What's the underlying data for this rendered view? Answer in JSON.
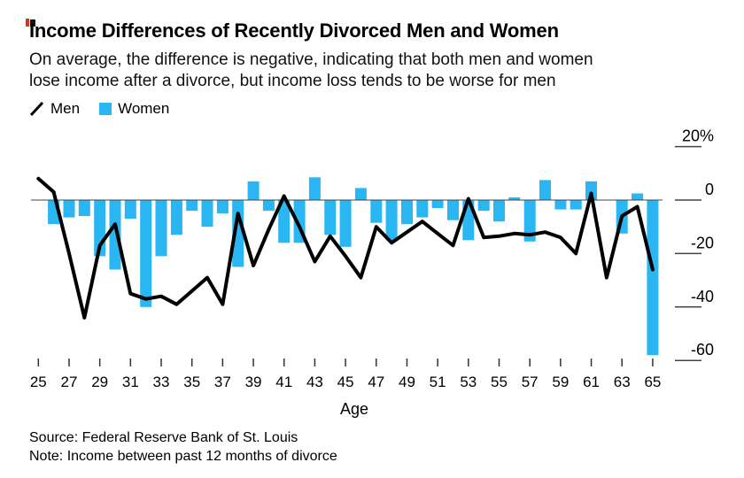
{
  "header": {
    "title": "Income Differences of Recently Divorced Men and Women",
    "subtitle_line1": "On average, the difference is negative, indicating that both men and women",
    "subtitle_line2": "lose income after a divorce, but income loss tends to be worse for men"
  },
  "logo": {
    "red": "#e0301e",
    "black": "#111111"
  },
  "legend": {
    "men_label": "Men",
    "women_label": "Women"
  },
  "chart_data": {
    "type": "bar+line",
    "title": "Income Differences of Recently Divorced Men and Women",
    "xlabel": "Age",
    "ylabel": "",
    "x": [
      25,
      26,
      27,
      28,
      29,
      30,
      31,
      32,
      33,
      34,
      35,
      36,
      37,
      38,
      39,
      40,
      41,
      42,
      43,
      44,
      45,
      46,
      47,
      48,
      49,
      50,
      51,
      52,
      53,
      54,
      55,
      56,
      57,
      58,
      59,
      60,
      61,
      62,
      63,
      64,
      65
    ],
    "series": [
      {
        "name": "Men",
        "type": "line",
        "color": "#000000",
        "values": [
          8,
          3,
          -20,
          -44,
          -17,
          -9,
          -35,
          -37,
          -36,
          -39,
          -34,
          -29,
          -39,
          -5,
          -24.5,
          -11,
          1.5,
          -10,
          -23,
          -13.5,
          -21,
          -29,
          -10,
          -16,
          -12,
          -8,
          -12.5,
          -17,
          0.5,
          -14,
          -13.5,
          -12.5,
          -13,
          -12,
          -14,
          -20,
          2.5,
          -29,
          -6,
          -2.5,
          -26
        ]
      },
      {
        "name": "Women",
        "type": "bar",
        "color": "#29b6f2",
        "values": [
          0,
          -9,
          -6.5,
          -6,
          -21,
          -26,
          -7,
          -40,
          -21,
          -13,
          -4,
          -10,
          -5,
          -25,
          7,
          -4,
          -16,
          -16,
          8.5,
          -13,
          -17.5,
          4.5,
          -8.5,
          -15,
          -9,
          -6.5,
          -3,
          -7.5,
          -15,
          -4,
          -8,
          1,
          -15.5,
          7.5,
          -3.5,
          -3.5,
          7,
          0,
          -12.5,
          2.5,
          -58
        ]
      }
    ],
    "x_tick_labels": [
      "25",
      "27",
      "29",
      "31",
      "33",
      "35",
      "37",
      "39",
      "41",
      "43",
      "45",
      "47",
      "49",
      "51",
      "53",
      "55",
      "57",
      "59",
      "61",
      "63",
      "65"
    ],
    "y_ticks": [
      {
        "label": "20%",
        "value": 20
      },
      {
        "label": "0",
        "value": 0
      },
      {
        "label": "-20",
        "value": -20
      },
      {
        "label": "-40",
        "value": -40
      },
      {
        "label": "-60",
        "value": -60
      }
    ],
    "ylim": [
      -62,
      22
    ],
    "grid": false,
    "zero_line": true,
    "legend_position": "top-left"
  },
  "footer": {
    "source": "Source: Federal Reserve Bank of St. Louis",
    "note": "Note: Income between past 12 months of divorce"
  }
}
